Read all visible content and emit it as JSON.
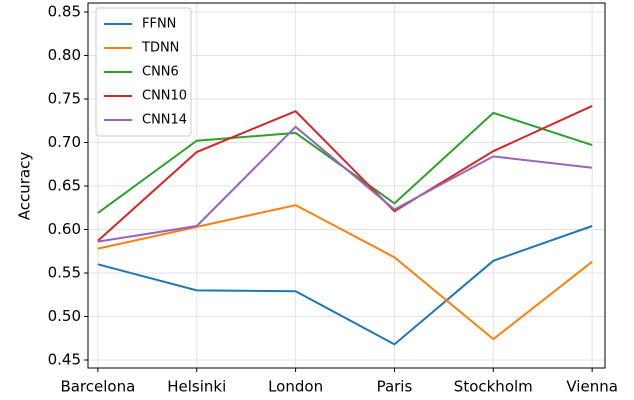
{
  "chart_data": {
    "type": "line",
    "y_label": "Accuracy",
    "categories": [
      "Barcelona",
      "Helsinki",
      "London",
      "Paris",
      "Stockholm",
      "Vienna"
    ],
    "series": [
      {
        "name": "FFNN",
        "color": "#1f77b4",
        "values": [
          0.56,
          0.53,
          0.529,
          0.468,
          0.564,
          0.604
        ]
      },
      {
        "name": "TDNN",
        "color": "#ff7f0e",
        "values": [
          0.578,
          0.603,
          0.628,
          0.568,
          0.474,
          0.563
        ]
      },
      {
        "name": "CNN6",
        "color": "#2ca02c",
        "values": [
          0.619,
          0.702,
          0.711,
          0.63,
          0.734,
          0.697
        ]
      },
      {
        "name": "CNN10",
        "color": "#d62728",
        "values": [
          0.587,
          0.689,
          0.736,
          0.621,
          0.69,
          0.742
        ]
      },
      {
        "name": "CNN14",
        "color": "#9467bd",
        "values": [
          0.586,
          0.604,
          0.718,
          0.623,
          0.684,
          0.671
        ]
      }
    ],
    "ylim": [
      0.4408,
      0.8603
    ],
    "yticks": [
      0.45,
      {
        "value": 0.5,
        "label": "0.50"
      },
      0.55,
      {
        "value": 0.6,
        "label": "0.60"
      },
      0.65,
      {
        "value": 0.7,
        "label": "0.70"
      },
      0.75,
      {
        "value": 0.8,
        "label": "0.80"
      },
      0.85
    ],
    "grid": true,
    "legend": "upper left"
  }
}
